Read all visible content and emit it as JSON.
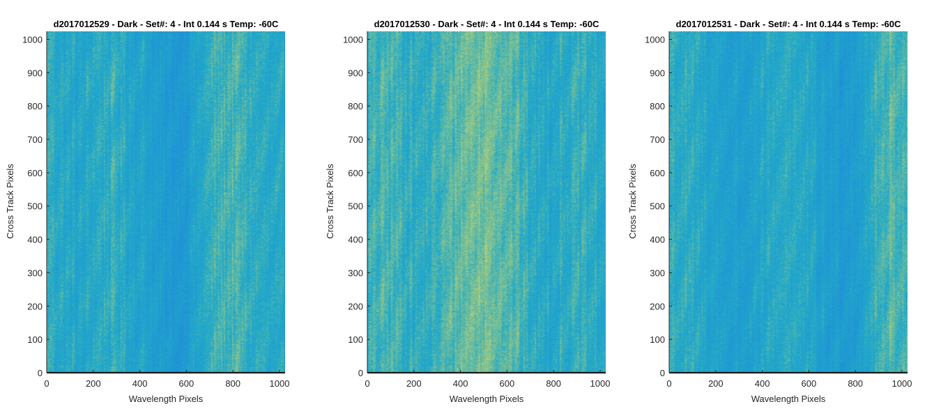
{
  "chart_data": [
    {
      "type": "heatmap",
      "title": "d2017012529 - Dark - Set#: 4 - Int 0.144 s Temp: -60C",
      "xlabel": "Wavelength Pixels",
      "ylabel": "Cross Track Pixels",
      "xlim": [
        0,
        1024
      ],
      "ylim": [
        0,
        1024
      ],
      "xticks": [
        0,
        200,
        400,
        600,
        800,
        1000
      ],
      "yticks": [
        0,
        100,
        200,
        300,
        400,
        500,
        600,
        700,
        800,
        900,
        1000
      ],
      "column_intensity": [
        0.55,
        0.45,
        0.4,
        0.5,
        0.52,
        0.42,
        0.35,
        0.2,
        0.22,
        0.42,
        0.58,
        0.62,
        0.52,
        0.45,
        0.38
      ]
    },
    {
      "type": "heatmap",
      "title": "d2017012530 - Dark - Set#: 4 - Int 0.144 s Temp: -60C",
      "xlabel": "Wavelength Pixels",
      "ylabel": "Cross Track Pixels",
      "xlim": [
        0,
        1024
      ],
      "ylim": [
        0,
        1024
      ],
      "xticks": [
        0,
        200,
        400,
        600,
        800,
        1000
      ],
      "yticks": [
        0,
        100,
        200,
        300,
        400,
        500,
        600,
        700,
        800,
        900,
        1000
      ],
      "column_intensity": [
        0.55,
        0.62,
        0.58,
        0.5,
        0.55,
        0.68,
        0.75,
        0.78,
        0.72,
        0.6,
        0.45,
        0.48,
        0.52,
        0.5,
        0.45
      ]
    },
    {
      "type": "heatmap",
      "title": "d2017012531 - Dark - Set#: 4 - Int 0.144 s Temp: -60C",
      "xlabel": "Wavelength Pixels",
      "ylabel": "Cross Track Pixels",
      "xlim": [
        0,
        1024
      ],
      "ylim": [
        0,
        1024
      ],
      "xticks": [
        0,
        200,
        400,
        600,
        800,
        1000
      ],
      "yticks": [
        0,
        100,
        200,
        300,
        400,
        500,
        600,
        700,
        800,
        900,
        1000
      ],
      "column_intensity": [
        0.55,
        0.48,
        0.42,
        0.35,
        0.3,
        0.32,
        0.45,
        0.52,
        0.42,
        0.3,
        0.25,
        0.3,
        0.5,
        0.68,
        0.58
      ]
    }
  ],
  "colors": {
    "low": "#1f8fd8",
    "mid": "#22aac8",
    "high": "#bcd070",
    "axis": "#262626"
  }
}
